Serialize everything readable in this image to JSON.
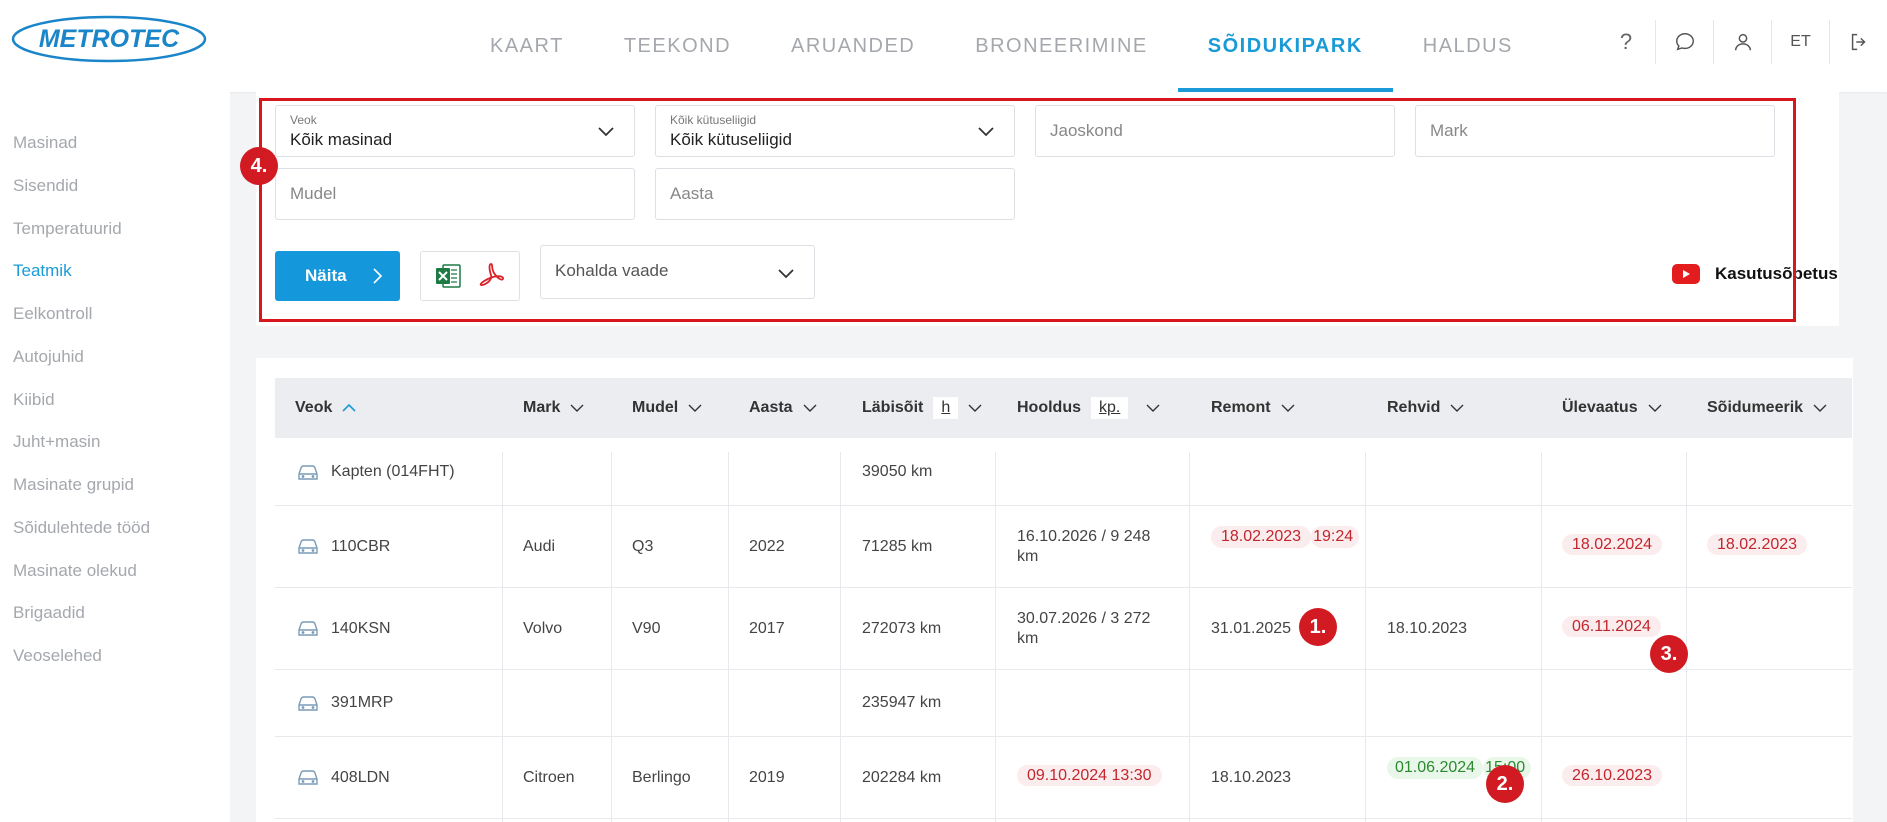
{
  "header": {
    "logo": "METROTEC",
    "nav": [
      "KAART",
      "TEEKOND",
      "ARUANDED",
      "BRONEERIMINE",
      "SÕIDUKIPARK",
      "HALDUS"
    ],
    "active_nav": "SÕIDUKIPARK",
    "language": "ET",
    "help_glyph": "?"
  },
  "sidebar": {
    "items": [
      "Masinad",
      "Sisendid",
      "Temperatuurid",
      "Teatmik",
      "Eelkontroll",
      "Autojuhid",
      "Kiibid",
      "Juht+masin",
      "Masinate grupid",
      "Sõidulehtede tööd",
      "Masinate olekud",
      "Brigaadid",
      "Veoselehed"
    ],
    "active": "Teatmik"
  },
  "filters": {
    "veok": {
      "label": "Veok",
      "value": "Kõik masinad"
    },
    "kytus": {
      "label": "Kõik kütuseliigid",
      "value": "Kõik kütuseliigid"
    },
    "jaoskond_placeholder": "Jaoskond",
    "mark_placeholder": "Mark",
    "mudel_placeholder": "Mudel",
    "aasta_placeholder": "Aasta",
    "show_button": "Näita",
    "view_select": "Kohalda vaade",
    "tutorial": "Kasutusõpetus"
  },
  "annotations": [
    "1.",
    "2.",
    "3.",
    "4."
  ],
  "table": {
    "headers": {
      "veok": "Veok",
      "mark": "Mark",
      "mudel": "Mudel",
      "aasta": "Aasta",
      "labisoit": "Läbisõit",
      "labisoit_unit": "h",
      "hooldus": "Hooldus",
      "hooldus_unit": "kp.",
      "remont": "Remont",
      "rehvid": "Rehvid",
      "ulevaatus": "Ülevaatus",
      "soidumeerik": "Sõidumeerik"
    },
    "rows": [
      {
        "veok": "Kapten (014FHT)",
        "mark": "",
        "mudel": "",
        "aasta": "",
        "labisoit": "39050 km",
        "hooldus_l1": "",
        "hooldus_l2": "",
        "remont_l1": "",
        "remont_l2": "",
        "rehvid_l1": "",
        "rehvid_l2": "",
        "ulevaatus": "",
        "soidumeerik": ""
      },
      {
        "veok": "110CBR",
        "mark": "Audi",
        "mudel": "Q3",
        "aasta": "2022",
        "labisoit": "71285 km",
        "hooldus_l1": "16.10.2026 / 9 248",
        "hooldus_l2": "km",
        "remont_l1": "18.02.2023",
        "remont_l2": "19:24",
        "rehvid_l1": "",
        "rehvid_l2": "",
        "ulevaatus": "18.02.2024",
        "soidumeerik": "18.02.2023"
      },
      {
        "veok": "140KSN",
        "mark": "Volvo",
        "mudel": "V90",
        "aasta": "2017",
        "labisoit": "272073 km",
        "hooldus_l1": "30.07.2026 / 3 272",
        "hooldus_l2": "km",
        "remont_l1": "31.01.2025",
        "remont_l2": "",
        "rehvid_l1": "18.10.2023",
        "rehvid_l2": "",
        "ulevaatus": "06.11.2024",
        "soidumeerik": ""
      },
      {
        "veok": "391MRP",
        "mark": "",
        "mudel": "",
        "aasta": "",
        "labisoit": "235947 km",
        "hooldus_l1": "",
        "hooldus_l2": "",
        "remont_l1": "",
        "remont_l2": "",
        "rehvid_l1": "",
        "rehvid_l2": "",
        "ulevaatus": "",
        "soidumeerik": ""
      },
      {
        "veok": "408LDN",
        "mark": "Citroen",
        "mudel": "Berlingo",
        "aasta": "2019",
        "labisoit": "202284 km",
        "hooldus_l1": "09.10.2024 13:30",
        "hooldus_l2": "",
        "remont_l1": "18.10.2023",
        "remont_l2": "",
        "rehvid_l1": "01.06.2024",
        "rehvid_l2": "15:00",
        "ulevaatus": "26.10.2023",
        "soidumeerik": ""
      }
    ]
  },
  "colors": {
    "accent": "#1a9bd7",
    "annotation_red": "#d11a22",
    "overdue_text": "#c1272d",
    "ok_text": "#2c8a2e"
  }
}
